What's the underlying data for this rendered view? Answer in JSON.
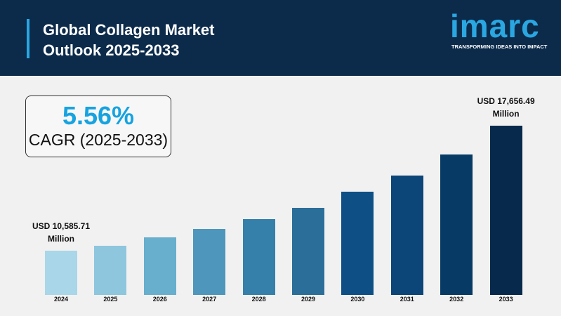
{
  "header": {
    "title": "Global Collagen Market Outlook 2025-2033",
    "logo": "imarc",
    "tagline": "TRANSFORMING IDEAS INTO IMPACT"
  },
  "cagr": {
    "value": "5.56%",
    "label": "CAGR (2025-2033)"
  },
  "chart_data": {
    "type": "bar",
    "categories": [
      "2024",
      "2025",
      "2026",
      "2027",
      "2028",
      "2029",
      "2030",
      "2031",
      "2032",
      "2033"
    ],
    "values": [
      10585.71,
      10864,
      11340,
      11817,
      12373,
      13009,
      13923,
      14836,
      16028,
      17656.49
    ],
    "value_labels": [
      "USD 10,585.71 Million",
      null,
      null,
      null,
      null,
      null,
      null,
      null,
      null,
      "USD 17,656.49 Million"
    ],
    "colors": [
      "#a9d6e8",
      "#8ec6de",
      "#68aecd",
      "#4e96bb",
      "#3580aa",
      "#2b6e99",
      "#0e4f86",
      "#0c4577",
      "#083a66",
      "#072a4c"
    ]
  }
}
